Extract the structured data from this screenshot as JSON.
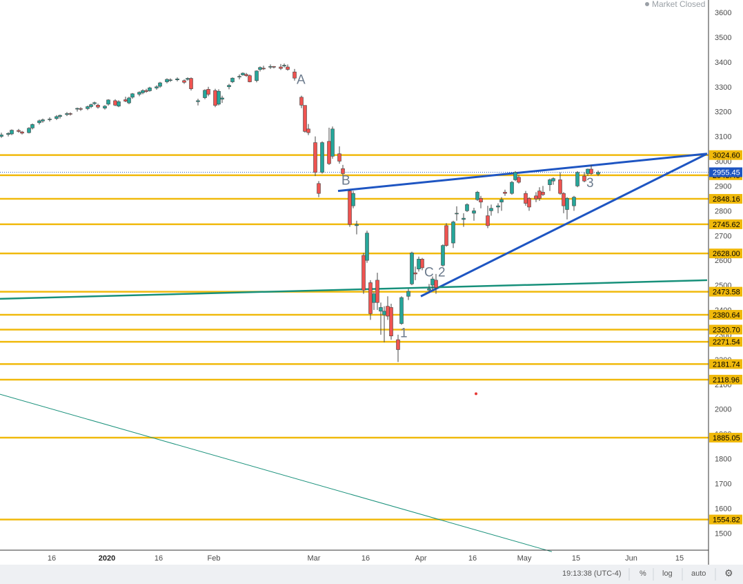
{
  "status": {
    "market_label": "Market Closed"
  },
  "toolbar": {
    "time": "19:13:38 (UTC-4)",
    "percent": "%",
    "log": "log",
    "auto": "auto",
    "settings_icon": "gear-icon"
  },
  "colors": {
    "up": "#26a69a",
    "down": "#ef5350",
    "level": "#f0b90b",
    "trend_blue": "#1e55c2",
    "trend_green": "#17907a",
    "current": "#1e55c2"
  },
  "chart_data": {
    "type": "candlestick",
    "y_axis": {
      "range": [
        1420,
        3640
      ],
      "ticks": [
        1500,
        1600,
        1700,
        1800,
        1900,
        2000,
        2100,
        2200,
        2300,
        2400,
        2500,
        2600,
        2700,
        2800,
        2900,
        3000,
        3100,
        3200,
        3300,
        3400,
        3500,
        3600
      ]
    },
    "x_axis": {
      "labels": [
        {
          "text": "16",
          "day": 15,
          "bold": false
        },
        {
          "text": "2020",
          "day": 31,
          "bold": true
        },
        {
          "text": "16",
          "day": 46,
          "bold": false
        },
        {
          "text": "Feb",
          "day": 62,
          "bold": false
        },
        {
          "text": "Mar",
          "day": 91,
          "bold": false
        },
        {
          "text": "16",
          "day": 106,
          "bold": false
        },
        {
          "text": "Apr",
          "day": 122,
          "bold": false
        },
        {
          "text": "16",
          "day": 137,
          "bold": false
        },
        {
          "text": "May",
          "day": 152,
          "bold": false
        },
        {
          "text": "15",
          "day": 167,
          "bold": false
        },
        {
          "text": "Jun",
          "day": 183,
          "bold": false
        },
        {
          "text": "15",
          "day": 197,
          "bold": false
        }
      ]
    },
    "current_price": 2955.45,
    "levels": [
      3024.6,
      2943.45,
      2848.16,
      2745.62,
      2628.0,
      2473.58,
      2380.64,
      2320.7,
      2271.54,
      2181.74,
      2118.96,
      1885.05,
      1554.82
    ],
    "trendlines": [
      {
        "name": "upper-wedge",
        "color": "blue",
        "from": {
          "day": 98,
          "price": 2880
        },
        "to": {
          "day": 205,
          "price": 3030
        }
      },
      {
        "name": "lower-wedge",
        "color": "blue",
        "from": {
          "day": 122,
          "price": 2455
        },
        "to": {
          "day": 205,
          "price": 3030
        }
      },
      {
        "name": "long-support",
        "color": "green",
        "from": {
          "day": 0,
          "price": 2445
        },
        "to": {
          "day": 205,
          "price": 2520
        }
      },
      {
        "name": "long-decline",
        "color": "green",
        "from": {
          "day": 0,
          "price": 2060
        },
        "to": {
          "day": 160,
          "price": 1425
        }
      }
    ],
    "annotations": [
      {
        "text": "A",
        "day": 86,
        "price": 3312
      },
      {
        "text": "B",
        "day": 99,
        "price": 2905
      },
      {
        "text": "C",
        "day": 123,
        "price": 2535
      },
      {
        "text": "2",
        "day": 127,
        "price": 2535
      },
      {
        "text": "1",
        "day": 116,
        "price": 2290
      },
      {
        "text": "3",
        "day": 170,
        "price": 2895
      }
    ],
    "marker": {
      "day": 138,
      "price": 2062
    },
    "candles": [
      {
        "d": 0,
        "o": 3100,
        "h": 3115,
        "l": 3094,
        "c": 3106
      },
      {
        "d": 2,
        "o": 3108,
        "h": 3117,
        "l": 3100,
        "c": 3112
      },
      {
        "d": 3,
        "o": 3110,
        "h": 3128,
        "l": 3105,
        "c": 3125
      },
      {
        "d": 5,
        "o": 3124,
        "h": 3130,
        "l": 3115,
        "c": 3120
      },
      {
        "d": 6,
        "o": 3118,
        "h": 3122,
        "l": 3108,
        "c": 3113
      },
      {
        "d": 8,
        "o": 3115,
        "h": 3137,
        "l": 3112,
        "c": 3133
      },
      {
        "d": 9,
        "o": 3134,
        "h": 3152,
        "l": 3128,
        "c": 3148
      },
      {
        "d": 11,
        "o": 3155,
        "h": 3168,
        "l": 3148,
        "c": 3163
      },
      {
        "d": 12,
        "o": 3162,
        "h": 3172,
        "l": 3155,
        "c": 3167
      },
      {
        "d": 14,
        "o": 3168,
        "h": 3177,
        "l": 3160,
        "c": 3170
      },
      {
        "d": 16,
        "o": 3172,
        "h": 3186,
        "l": 3166,
        "c": 3180
      },
      {
        "d": 17,
        "o": 3180,
        "h": 3188,
        "l": 3172,
        "c": 3185
      },
      {
        "d": 19,
        "o": 3188,
        "h": 3198,
        "l": 3182,
        "c": 3192
      },
      {
        "d": 20,
        "o": 3192,
        "h": 3197,
        "l": 3184,
        "c": 3190
      },
      {
        "d": 22,
        "o": 3210,
        "h": 3216,
        "l": 3200,
        "c": 3213
      },
      {
        "d": 23,
        "o": 3212,
        "h": 3218,
        "l": 3203,
        "c": 3210
      },
      {
        "d": 25,
        "o": 3212,
        "h": 3224,
        "l": 3206,
        "c": 3220
      },
      {
        "d": 26,
        "o": 3220,
        "h": 3232,
        "l": 3214,
        "c": 3228
      },
      {
        "d": 27,
        "o": 3232,
        "h": 3240,
        "l": 3226,
        "c": 3236
      },
      {
        "d": 28,
        "o": 3226,
        "h": 3232,
        "l": 3212,
        "c": 3218
      },
      {
        "d": 30,
        "o": 3214,
        "h": 3226,
        "l": 3208,
        "c": 3222
      },
      {
        "d": 31,
        "o": 3230,
        "h": 3250,
        "l": 3224,
        "c": 3247
      },
      {
        "d": 33,
        "o": 3244,
        "h": 3250,
        "l": 3222,
        "c": 3226
      },
      {
        "d": 34,
        "o": 3222,
        "h": 3246,
        "l": 3218,
        "c": 3240
      },
      {
        "d": 36,
        "o": 3248,
        "h": 3260,
        "l": 3238,
        "c": 3242
      },
      {
        "d": 37,
        "o": 3235,
        "h": 3260,
        "l": 3230,
        "c": 3255
      },
      {
        "d": 38,
        "o": 3258,
        "h": 3275,
        "l": 3252,
        "c": 3272
      },
      {
        "d": 40,
        "o": 3270,
        "h": 3282,
        "l": 3262,
        "c": 3278
      },
      {
        "d": 41,
        "o": 3276,
        "h": 3290,
        "l": 3270,
        "c": 3285
      },
      {
        "d": 42,
        "o": 3285,
        "h": 3292,
        "l": 3276,
        "c": 3281
      },
      {
        "d": 43,
        "o": 3284,
        "h": 3300,
        "l": 3280,
        "c": 3296
      },
      {
        "d": 45,
        "o": 3295,
        "h": 3306,
        "l": 3288,
        "c": 3300
      },
      {
        "d": 46,
        "o": 3302,
        "h": 3320,
        "l": 3296,
        "c": 3316
      },
      {
        "d": 48,
        "o": 3320,
        "h": 3334,
        "l": 3314,
        "c": 3330
      },
      {
        "d": 49,
        "o": 3328,
        "h": 3334,
        "l": 3320,
        "c": 3328
      },
      {
        "d": 51,
        "o": 3328,
        "h": 3338,
        "l": 3322,
        "c": 3332
      },
      {
        "d": 53,
        "o": 3325,
        "h": 3330,
        "l": 3312,
        "c": 3318
      },
      {
        "d": 54,
        "o": 3330,
        "h": 3338,
        "l": 3325,
        "c": 3334
      },
      {
        "d": 55,
        "o": 3334,
        "h": 3338,
        "l": 3285,
        "c": 3292
      },
      {
        "d": 57,
        "o": 3240,
        "h": 3252,
        "l": 3225,
        "c": 3244
      },
      {
        "d": 59,
        "o": 3256,
        "h": 3290,
        "l": 3250,
        "c": 3286
      },
      {
        "d": 60,
        "o": 3290,
        "h": 3300,
        "l": 3262,
        "c": 3270
      },
      {
        "d": 62,
        "o": 3285,
        "h": 3292,
        "l": 3218,
        "c": 3225
      },
      {
        "d": 63,
        "o": 3230,
        "h": 3290,
        "l": 3225,
        "c": 3282
      },
      {
        "d": 64,
        "o": 3250,
        "h": 3264,
        "l": 3235,
        "c": 3255
      },
      {
        "d": 66,
        "o": 3300,
        "h": 3312,
        "l": 3290,
        "c": 3306
      },
      {
        "d": 67,
        "o": 3320,
        "h": 3338,
        "l": 3315,
        "c": 3335
      },
      {
        "d": 69,
        "o": 3340,
        "h": 3350,
        "l": 3330,
        "c": 3342
      },
      {
        "d": 70,
        "o": 3348,
        "h": 3358,
        "l": 3345,
        "c": 3355
      },
      {
        "d": 71,
        "o": 3350,
        "h": 3356,
        "l": 3340,
        "c": 3345
      },
      {
        "d": 72,
        "o": 3345,
        "h": 3350,
        "l": 3318,
        "c": 3320
      },
      {
        "d": 74,
        "o": 3325,
        "h": 3366,
        "l": 3318,
        "c": 3364
      },
      {
        "d": 75,
        "o": 3370,
        "h": 3382,
        "l": 3362,
        "c": 3378
      },
      {
        "d": 76,
        "o": 3375,
        "h": 3385,
        "l": 3368,
        "c": 3372
      },
      {
        "d": 78,
        "o": 3380,
        "h": 3390,
        "l": 3372,
        "c": 3382
      },
      {
        "d": 79,
        "o": 3382,
        "h": 3384,
        "l": 3374,
        "c": 3380
      },
      {
        "d": 81,
        "o": 3380,
        "h": 3392,
        "l": 3368,
        "c": 3374
      },
      {
        "d": 82,
        "o": 3384,
        "h": 3394,
        "l": 3378,
        "c": 3387
      },
      {
        "d": 83,
        "o": 3380,
        "h": 3390,
        "l": 3365,
        "c": 3370
      },
      {
        "d": 85,
        "o": 3360,
        "h": 3372,
        "l": 3325,
        "c": 3335
      },
      {
        "d": 87,
        "o": 3258,
        "h": 3264,
        "l": 3214,
        "c": 3226
      },
      {
        "d": 88,
        "o": 3225,
        "h": 3225,
        "l": 3115,
        "c": 3120
      },
      {
        "d": 89,
        "o": 3130,
        "h": 3150,
        "l": 3105,
        "c": 3115
      },
      {
        "d": 91,
        "o": 3075,
        "h": 3100,
        "l": 2940,
        "c": 2955
      },
      {
        "d": 92,
        "o": 2910,
        "h": 2920,
        "l": 2855,
        "c": 2870
      },
      {
        "d": 93,
        "o": 2955,
        "h": 3080,
        "l": 2950,
        "c": 3075
      },
      {
        "d": 95,
        "o": 3080,
        "h": 3135,
        "l": 2985,
        "c": 2990
      },
      {
        "d": 96,
        "o": 3020,
        "h": 3140,
        "l": 3010,
        "c": 3130
      },
      {
        "d": 98,
        "o": 3030,
        "h": 3060,
        "l": 2990,
        "c": 3000
      },
      {
        "d": 99,
        "o": 2970,
        "h": 2985,
        "l": 2910,
        "c": 2950
      },
      {
        "d": 101,
        "o": 2880,
        "h": 2885,
        "l": 2735,
        "c": 2745
      },
      {
        "d": 102,
        "o": 2820,
        "h": 2880,
        "l": 2810,
        "c": 2870
      },
      {
        "d": 103,
        "o": 2740,
        "h": 2760,
        "l": 2705,
        "c": 2745
      },
      {
        "d": 105,
        "o": 2620,
        "h": 2630,
        "l": 2465,
        "c": 2480
      },
      {
        "d": 106,
        "o": 2600,
        "h": 2720,
        "l": 2590,
        "c": 2710
      },
      {
        "d": 107,
        "o": 2510,
        "h": 2520,
        "l": 2360,
        "c": 2385
      },
      {
        "d": 108,
        "o": 2430,
        "h": 2475,
        "l": 2400,
        "c": 2465
      },
      {
        "d": 109,
        "o": 2520,
        "h": 2550,
        "l": 2400,
        "c": 2430
      },
      {
        "d": 110,
        "o": 2395,
        "h": 2430,
        "l": 2300,
        "c": 2410
      },
      {
        "d": 111,
        "o": 2380,
        "h": 2415,
        "l": 2270,
        "c": 2395
      },
      {
        "d": 112,
        "o": 2415,
        "h": 2455,
        "l": 2360,
        "c": 2375
      },
      {
        "d": 113,
        "o": 2410,
        "h": 2425,
        "l": 2280,
        "c": 2295
      },
      {
        "d": 115,
        "o": 2280,
        "h": 2300,
        "l": 2190,
        "c": 2240
      },
      {
        "d": 116,
        "o": 2345,
        "h": 2455,
        "l": 2340,
        "c": 2450
      },
      {
        "d": 118,
        "o": 2455,
        "h": 2485,
        "l": 2440,
        "c": 2475
      },
      {
        "d": 119,
        "o": 2505,
        "h": 2635,
        "l": 2500,
        "c": 2630
      },
      {
        "d": 120,
        "o": 2550,
        "h": 2575,
        "l": 2520,
        "c": 2545
      },
      {
        "d": 121,
        "o": 2565,
        "h": 2615,
        "l": 2555,
        "c": 2605
      },
      {
        "d": 122,
        "o": 2605,
        "h": 2610,
        "l": 2560,
        "c": 2570
      },
      {
        "d": 124,
        "o": 2480,
        "h": 2505,
        "l": 2470,
        "c": 2485
      },
      {
        "d": 125,
        "o": 2500,
        "h": 2535,
        "l": 2480,
        "c": 2525
      },
      {
        "d": 126,
        "o": 2520,
        "h": 2545,
        "l": 2465,
        "c": 2490
      },
      {
        "d": 128,
        "o": 2580,
        "h": 2665,
        "l": 2575,
        "c": 2660
      },
      {
        "d": 129,
        "o": 2740,
        "h": 2750,
        "l": 2655,
        "c": 2660
      },
      {
        "d": 131,
        "o": 2670,
        "h": 2760,
        "l": 2650,
        "c": 2755
      },
      {
        "d": 132,
        "o": 2790,
        "h": 2818,
        "l": 2760,
        "c": 2790
      },
      {
        "d": 134,
        "o": 2765,
        "h": 2790,
        "l": 2735,
        "c": 2770
      },
      {
        "d": 135,
        "o": 2800,
        "h": 2830,
        "l": 2795,
        "c": 2825
      },
      {
        "d": 137,
        "o": 2790,
        "h": 2812,
        "l": 2760,
        "c": 2800
      },
      {
        "d": 138,
        "o": 2845,
        "h": 2880,
        "l": 2840,
        "c": 2875
      },
      {
        "d": 139,
        "o": 2850,
        "h": 2860,
        "l": 2810,
        "c": 2835
      },
      {
        "d": 141,
        "o": 2780,
        "h": 2820,
        "l": 2730,
        "c": 2740
      },
      {
        "d": 142,
        "o": 2800,
        "h": 2825,
        "l": 2780,
        "c": 2810
      },
      {
        "d": 144,
        "o": 2815,
        "h": 2830,
        "l": 2790,
        "c": 2820
      },
      {
        "d": 145,
        "o": 2835,
        "h": 2855,
        "l": 2800,
        "c": 2845
      },
      {
        "d": 146,
        "o": 2875,
        "h": 2885,
        "l": 2860,
        "c": 2870
      },
      {
        "d": 148,
        "o": 2870,
        "h": 2920,
        "l": 2865,
        "c": 2915
      },
      {
        "d": 149,
        "o": 2925,
        "h": 2960,
        "l": 2920,
        "c": 2955
      },
      {
        "d": 150,
        "o": 2935,
        "h": 2945,
        "l": 2910,
        "c": 2915
      },
      {
        "d": 152,
        "o": 2870,
        "h": 2880,
        "l": 2820,
        "c": 2830
      },
      {
        "d": 153,
        "o": 2850,
        "h": 2855,
        "l": 2800,
        "c": 2815
      },
      {
        "d": 155,
        "o": 2860,
        "h": 2875,
        "l": 2835,
        "c": 2848
      },
      {
        "d": 156,
        "o": 2880,
        "h": 2895,
        "l": 2840,
        "c": 2850
      },
      {
        "d": 157,
        "o": 2875,
        "h": 2900,
        "l": 2860,
        "c": 2865
      },
      {
        "d": 159,
        "o": 2905,
        "h": 2930,
        "l": 2880,
        "c": 2925
      },
      {
        "d": 160,
        "o": 2920,
        "h": 2935,
        "l": 2905,
        "c": 2930
      },
      {
        "d": 162,
        "o": 2925,
        "h": 2955,
        "l": 2865,
        "c": 2870
      },
      {
        "d": 163,
        "o": 2870,
        "h": 2875,
        "l": 2790,
        "c": 2820
      },
      {
        "d": 164,
        "o": 2805,
        "h": 2855,
        "l": 2765,
        "c": 2850
      },
      {
        "d": 166,
        "o": 2820,
        "h": 2860,
        "l": 2800,
        "c": 2855
      },
      {
        "d": 167,
        "o": 2900,
        "h": 2960,
        "l": 2895,
        "c": 2955
      },
      {
        "d": 169,
        "o": 2940,
        "h": 2955,
        "l": 2915,
        "c": 2920
      },
      {
        "d": 170,
        "o": 2950,
        "h": 2970,
        "l": 2940,
        "c": 2968
      },
      {
        "d": 171,
        "o": 2968,
        "h": 2985,
        "l": 2945,
        "c": 2950
      },
      {
        "d": 173,
        "o": 2948,
        "h": 2962,
        "l": 2940,
        "c": 2955
      }
    ]
  }
}
